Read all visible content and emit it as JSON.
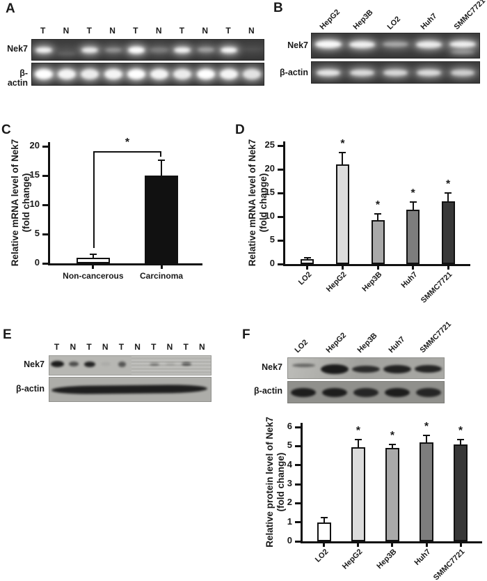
{
  "letters": {
    "a": "A",
    "b": "B",
    "c": "C",
    "d": "D",
    "e": "E",
    "f": "F"
  },
  "gels": {
    "A": {
      "lane_labels": [
        "T",
        "N",
        "T",
        "N",
        "T",
        "N",
        "T",
        "N",
        "T",
        "N"
      ],
      "label_style": "horizontal",
      "rows": [
        {
          "label": "Nek7",
          "style": "bright",
          "band_h": 8,
          "band_w": 0.72,
          "bands": [
            0.95,
            {
              "i": 0.18,
              "h": 6,
              "dy": 5,
              "w": 0.8
            },
            0.9,
            {
              "i": 0.45,
              "h": 6
            },
            {
              "i": 1,
              "h": 10
            },
            {
              "i": 0.3,
              "h": 8,
              "w": 0.8
            },
            0.95,
            {
              "i": 0.5,
              "h": 7
            },
            0.98,
            {
              "i": 0.06,
              "h": 5
            }
          ]
        },
        {
          "label": "β-actin",
          "style": "bright",
          "band_h": 15,
          "band_w": 0.78,
          "bands": [
            1,
            0.95,
            0.9,
            0.95,
            1,
            0.95,
            0.9,
            1,
            0.95,
            0.85
          ]
        }
      ]
    },
    "B": {
      "lane_labels": [
        "HepG2",
        "Hep3B",
        "LO2",
        "Huh7",
        "SMMC7721"
      ],
      "label_style": "rotated",
      "rows": [
        {
          "label": "Nek7",
          "style": "bright",
          "band_h": 10,
          "band_w": 0.78,
          "band_dy": -2,
          "bands": [
            {
              "i": 0.97,
              "h": 11
            },
            0.92,
            {
              "i": 0.55,
              "h": 7
            },
            0.9,
            {
              "i": 0.92,
              "h": 9
            }
          ],
          "extra_bands": [
            {
              "lane": 4,
              "intensity": 0.45,
              "h": 4,
              "dy": 9,
              "w": 0.7
            }
          ]
        },
        {
          "label": "β-actin",
          "style": "bright",
          "band_h": 9,
          "band_w": 0.72,
          "bands": [
            0.88,
            0.82,
            0.8,
            0.82,
            0.75
          ]
        }
      ]
    },
    "E": {
      "lane_labels": [
        "T",
        "N",
        "T",
        "N",
        "T",
        "N",
        "T",
        "N",
        "T",
        "N"
      ],
      "label_style": "horizontal",
      "rows": [
        {
          "label": "Nek7",
          "style": "dark",
          "band_h": 7,
          "band_w": 0.62,
          "band_dy": -2,
          "overlay_right": 49,
          "bands": [
            {
              "i": 0.97,
              "h": 9,
              "w": 0.8
            },
            {
              "i": 0.65,
              "h": 7
            },
            {
              "i": 0.92,
              "h": 8,
              "w": 0.7
            },
            {
              "i": 0.07,
              "h": 5
            },
            {
              "i": 0.6,
              "h": 8,
              "w": 0.5
            },
            0,
            {
              "i": 0.45,
              "h": 4
            },
            {
              "i": 0.18,
              "h": 3
            },
            {
              "i": 0.65,
              "h": 5
            },
            0
          ]
        },
        {
          "label": "β-actin",
          "style": "dark",
          "band_h": 12,
          "continuous_band": true,
          "bands": []
        }
      ]
    },
    "F": {
      "lane_labels": [
        "LO2",
        "HepG2",
        "Hep3B",
        "Huh7",
        "SMMC7721"
      ],
      "label_style": "rotated",
      "rows": [
        {
          "label": "Nek7",
          "style": "dark",
          "band_h": 11,
          "band_w": 0.88,
          "band_dy": 1,
          "bands": [
            {
              "i": 0.5,
              "h": 5,
              "dy": -4,
              "w": 0.75
            },
            {
              "i": 0.97,
              "h": 14
            },
            {
              "i": 0.85,
              "h": 10
            },
            {
              "i": 0.92,
              "h": 12
            },
            {
              "i": 0.9,
              "h": 11
            }
          ]
        },
        {
          "label": "β-actin",
          "style": "dark",
          "band_h": 13,
          "band_w": 0.8,
          "bands": [
            0.95,
            0.95,
            0.88,
            0.95,
            0.88
          ]
        }
      ]
    }
  },
  "chart_data": [
    {
      "panel": "C",
      "type": "bar",
      "categories": [
        "Non-cancerous",
        "Carcinoma"
      ],
      "values": [
        1,
        15
      ],
      "errors": [
        0.55,
        2.6
      ],
      "bar_colors": [
        "#ffffff",
        "#111111"
      ],
      "ylabel_lines": [
        "Relative mRNA level of Nek7",
        "(fold change)"
      ],
      "ylabel": "Relative mRNA level of Nek7 (fold change)",
      "xlabel": "",
      "ylim": [
        0,
        20
      ],
      "yticks": [
        0,
        5,
        10,
        15,
        20
      ],
      "xlabel_rotated": false,
      "grid": false,
      "significance": {
        "label": "*",
        "y": 19.2,
        "drop_left_to": 2.6,
        "drop_right_to": 18.2
      }
    },
    {
      "panel": "D",
      "type": "bar",
      "categories": [
        "LO2",
        "HepG2",
        "Hep3B",
        "Huh7",
        "SMMC7721"
      ],
      "values": [
        1,
        21,
        9.2,
        11.4,
        13.3
      ],
      "errors": [
        0.3,
        2.6,
        1.4,
        1.7,
        1.7
      ],
      "sig": [
        null,
        "*",
        "*",
        "*",
        "*"
      ],
      "bar_colors": [
        "#ffffff",
        "#dcdcdc",
        "#a9a9a9",
        "#7d7d7d",
        "#383838"
      ],
      "ylabel_lines": [
        "Relative mRNA level of Nek7",
        "(fold change)"
      ],
      "ylabel": "Relative mRNA level of Nek7 (fold change)",
      "xlabel": "",
      "ylim": [
        0,
        25
      ],
      "yticks": [
        0,
        5,
        10,
        15,
        20,
        25
      ],
      "xlabel_rotated": true,
      "grid": false
    },
    {
      "panel": "F",
      "type": "bar",
      "categories": [
        "LO2",
        "HepG2",
        "Hep3B",
        "Huh7",
        "SMMC7721"
      ],
      "values": [
        1,
        4.95,
        4.9,
        5.2,
        5.1
      ],
      "errors": [
        0.25,
        0.38,
        0.2,
        0.35,
        0.25
      ],
      "sig": [
        null,
        "*",
        "*",
        "*",
        "*"
      ],
      "bar_colors": [
        "#ffffff",
        "#dcdcdc",
        "#a9a9a9",
        "#7d7d7d",
        "#383838"
      ],
      "ylabel_lines": [
        "Relative protein level of Nek7",
        "(fold change)"
      ],
      "ylabel": "Relative protein level of Nek7 (fold change)",
      "xlabel": "",
      "ylim": [
        0,
        6
      ],
      "yticks": [
        0,
        1,
        2,
        3,
        4,
        5,
        6
      ],
      "xlabel_rotated": true,
      "grid": false
    }
  ]
}
